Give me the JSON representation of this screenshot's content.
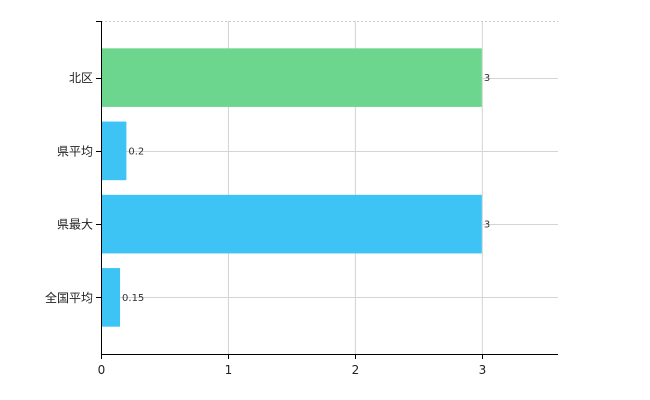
{
  "chart_data": {
    "type": "bar",
    "orientation": "horizontal",
    "categories": [
      "北区",
      "県平均",
      "県最大",
      "全国平均"
    ],
    "values": [
      3,
      0.2,
      3,
      0.15
    ],
    "value_labels": [
      "3",
      "0.2",
      "3",
      "0.15"
    ],
    "bar_colors": [
      "#6dd68e",
      "#3ec3f5",
      "#3ec3f5",
      "#3ec3f5"
    ],
    "xlim": [
      0,
      3.6
    ],
    "x_ticks": [
      0,
      1,
      2,
      3
    ],
    "x_tick_labels": [
      "0",
      "1",
      "2",
      "3"
    ],
    "grid": true,
    "title": "",
    "xlabel": "",
    "ylabel": ""
  }
}
